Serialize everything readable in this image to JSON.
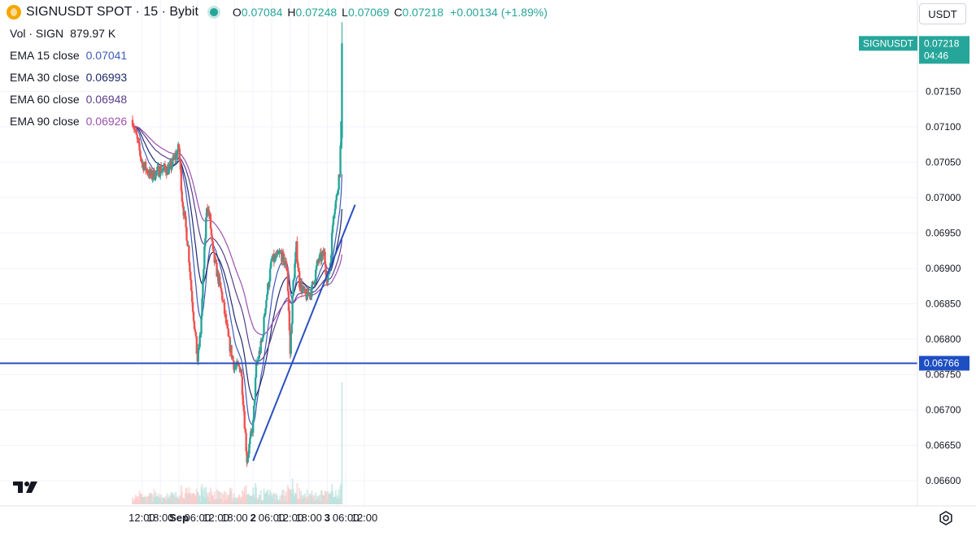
{
  "header": {
    "title": "SIGNUSDT SPOT · 15 · Bybit",
    "open_key": "O",
    "open": "0.07084",
    "high_key": "H",
    "high": "0.07248",
    "low_key": "L",
    "low": "0.07069",
    "close_key": "C",
    "close": "0.07218",
    "change": "+0.00134 (+1.89%)"
  },
  "volume_legend": {
    "name": "Vol · SIGN",
    "value": "879.97 K"
  },
  "ema_legend": [
    {
      "name": "EMA 15 close",
      "value": "0.07041",
      "color": "#3d5ab8"
    },
    {
      "name": "EMA 30 close",
      "value": "0.06993",
      "color": "#1f2a6b"
    },
    {
      "name": "EMA 60 close",
      "value": "0.06948",
      "color": "#5a3d8a"
    },
    {
      "name": "EMA 90 close",
      "value": "0.06926",
      "color": "#9c4fb0"
    }
  ],
  "currency_button": "USDT",
  "price_tags": [
    {
      "label": "SIGNUSDT",
      "value": "0.07218",
      "sub": "04:46",
      "color": "#26a69a"
    },
    {
      "value": "0.06766",
      "color": "#1e4fc2"
    }
  ],
  "colors": {
    "up": "#26a69a",
    "down": "#ef5350",
    "line": "#2a4fc0",
    "grid": "#f0f3fa"
  },
  "chart_data": {
    "type": "candlestick",
    "y_ticks": [
      0.0715,
      0.071,
      0.0705,
      0.07,
      0.0695,
      0.069,
      0.0685,
      0.068,
      0.0675,
      0.067,
      0.0665,
      0.066
    ],
    "y_tick_labels": [
      "0.07150",
      "0.07100",
      "0.07050",
      "0.07000",
      "0.06950",
      "0.06900",
      "0.06850",
      "0.06800",
      "0.06750",
      "0.06700",
      "0.06650",
      "0.06600"
    ],
    "x_tick_labels": [
      "12:00",
      "18:00",
      "Sep",
      "06:00",
      "12:00",
      "18:00",
      "2",
      "06:00",
      "12:00",
      "18:00",
      "3",
      "06:00",
      "12:00"
    ],
    "horizontal_level": 0.06766,
    "trendline": {
      "from": [
        "2 00:00",
        0.06628
      ],
      "to": [
        "3 09:00",
        0.0699
      ]
    },
    "price_anchors": [
      [
        "31 Aug 09:00",
        0.0711
      ],
      [
        "31 Aug 12:00",
        0.0705
      ],
      [
        "31 Aug 15:00",
        0.0703
      ],
      [
        "31 Aug 18:00",
        0.0704
      ],
      [
        "31 Aug 21:00",
        0.0704
      ],
      [
        "Sep 00:00",
        0.0707
      ],
      [
        "Sep 01:00",
        0.07
      ],
      [
        "Sep 03:00",
        0.0693
      ],
      [
        "Sep 04:00",
        0.0687
      ],
      [
        "Sep 06:00",
        0.0677
      ],
      [
        "Sep 07:00",
        0.0681
      ],
      [
        "Sep 08:00",
        0.069
      ],
      [
        "Sep 09:00",
        0.0699
      ],
      [
        "Sep 10:00",
        0.0697
      ],
      [
        "Sep 11:00",
        0.0692
      ],
      [
        "Sep 12:00",
        0.069
      ],
      [
        "Sep 14:00",
        0.0686
      ],
      [
        "Sep 16:00",
        0.068
      ],
      [
        "Sep 18:00",
        0.0676
      ],
      [
        "Sep 20:00",
        0.0676
      ],
      [
        "Sep 21:00",
        0.067
      ],
      [
        "Sep 22:00",
        0.0663
      ],
      [
        "2 00:00",
        0.0668
      ],
      [
        "2 01:00",
        0.0676
      ],
      [
        "2 03:00",
        0.068
      ],
      [
        "2 04:00",
        0.0685
      ],
      [
        "2 06:00",
        0.0691
      ],
      [
        "2 09:00",
        0.0692
      ],
      [
        "2 11:00",
        0.069
      ],
      [
        "2 12:00",
        0.0678
      ],
      [
        "2 13:00",
        0.0688
      ],
      [
        "2 14:00",
        0.0693
      ],
      [
        "2 15:00",
        0.0688
      ],
      [
        "2 17:00",
        0.0686
      ],
      [
        "2 19:00",
        0.0687
      ],
      [
        "2 21:00",
        0.0691
      ],
      [
        "2 23:00",
        0.0692
      ],
      [
        "3 00:00",
        0.0688
      ],
      [
        "3 01:00",
        0.0691
      ],
      [
        "3 02:00",
        0.0698
      ],
      [
        "3 03:00",
        0.07
      ],
      [
        "3 04:00",
        0.0704
      ],
      [
        "3 04:30",
        0.071
      ],
      [
        "3 04:46",
        0.07218
      ]
    ],
    "volume_max_label": "879.97 K"
  }
}
